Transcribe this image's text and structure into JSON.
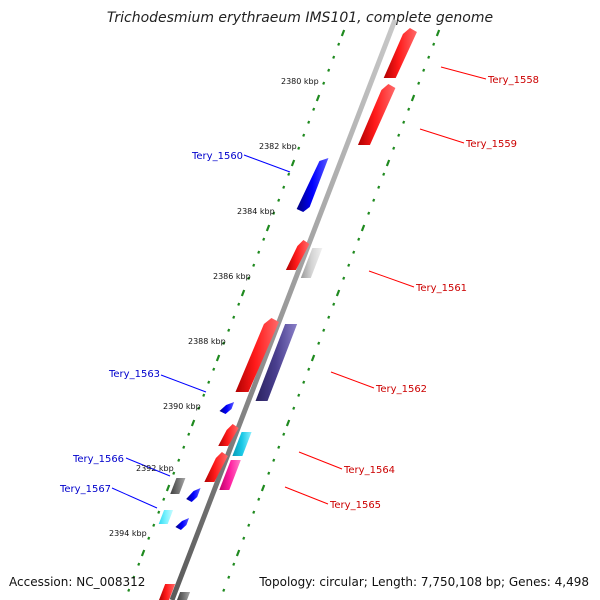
{
  "title": "Trichodesmium erythraeum IMS101, complete genome",
  "footer": {
    "accession": "Accession: NC_008312",
    "info": "Topology: circular; Length: 7,750,108 bp; Genes: 4,498"
  },
  "ticks": [
    "2380 kbp",
    "2382 kbp",
    "2384 kbp",
    "2386 kbp",
    "2388 kbp",
    "2390 kbp",
    "2392 kbp",
    "2394 kbp"
  ],
  "genes": [
    {
      "label": "Tery_1558",
      "strand": "+",
      "color": "#ff0000"
    },
    {
      "label": "Tery_1559",
      "strand": "+",
      "color": "#ff0000"
    },
    {
      "label": "Tery_1560",
      "strand": "-",
      "color": "#0000ff"
    },
    {
      "label": "Tery_1561",
      "strand": "+",
      "color": "#ff0000"
    },
    {
      "label": "Tery_1562",
      "strand": "+",
      "color": "#ff0000"
    },
    {
      "label": "Tery_1563",
      "strand": "-",
      "color": "#0000ff"
    },
    {
      "label": "Tery_1564",
      "strand": "+",
      "color": "#ff0000"
    },
    {
      "label": "Tery_1565",
      "strand": "+",
      "color": "#ff0000"
    },
    {
      "label": "Tery_1566",
      "strand": "-",
      "color": "#0000ff"
    },
    {
      "label": "Tery_1567",
      "strand": "-",
      "color": "#0000ff"
    }
  ],
  "colors": {
    "forward": "#ff0000",
    "reverse": "#0000ff",
    "backbone": "#8c8c8c",
    "ticks": "#1f8a1f",
    "cog_grey": "#bdbdbd",
    "cog_slate": "#4a3f8f",
    "cog_cyan": "#19c8e6",
    "cog_magenta": "#ff1fa0",
    "cog_dark": "#707070"
  }
}
